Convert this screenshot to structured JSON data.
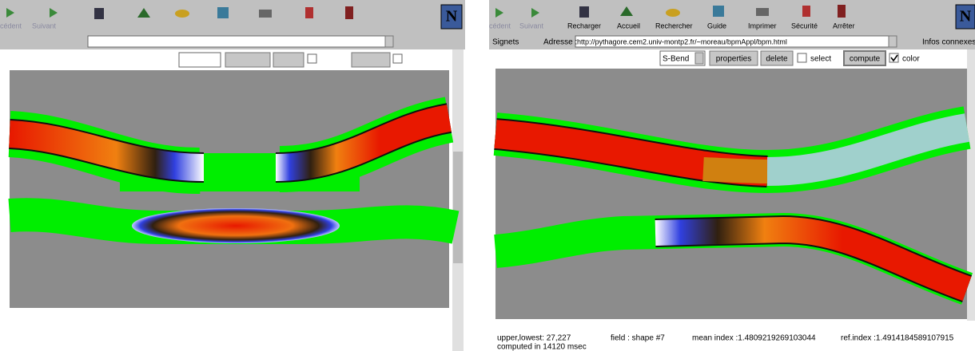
{
  "left_window": {
    "toolbar": [
      "cédent",
      "Suivant"
    ]
  },
  "right_window": {
    "toolbar": [
      "cédent",
      "Suivant",
      "Recharger",
      "Accueil",
      "Rechercher",
      "Guide",
      "Imprimer",
      "Sécurité",
      "Arrêter"
    ],
    "bookmarks": "Signets",
    "address_label": "Adresse :",
    "url": "http://pythagore.cem2.univ-montp2.fr/~moreau/bpmAppl/bpm.html",
    "related": "Infos connexes",
    "controls": {
      "shape": "S-Bend",
      "properties": "properties",
      "delete": "delete",
      "select": "select",
      "compute": "compute",
      "color": "color"
    },
    "status": {
      "bounds": "upper,lowest: 27,227",
      "field": "field : shape #7",
      "mean_index": "mean index :1.4809219269103044",
      "ref_index": "ref.index :1.4914184589107915",
      "time": "computed in 14120 msec"
    }
  }
}
